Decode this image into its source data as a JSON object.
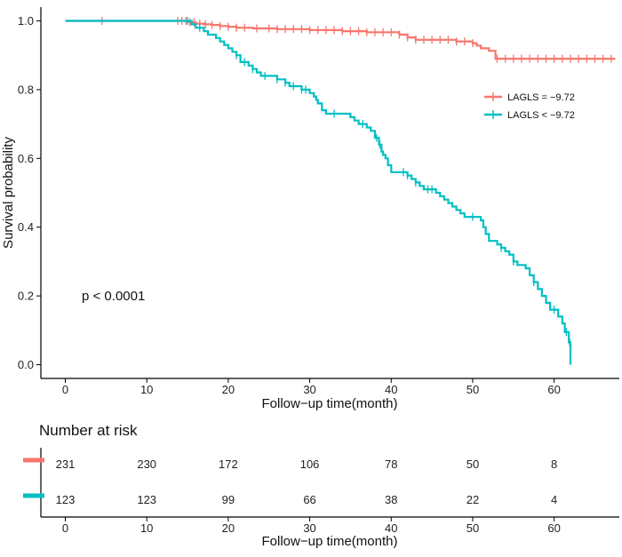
{
  "chart_data": {
    "type": "line",
    "subtype": "kaplan-meier",
    "xlabel": "Follow−up time(month)",
    "ylabel": "Survival probability",
    "xlim": [
      -3,
      68
    ],
    "ylim": [
      -0.04,
      1.04
    ],
    "x_ticks": [
      0,
      10,
      20,
      30,
      40,
      50,
      60
    ],
    "x_tick_labels": [
      "0",
      "10",
      "20",
      "30",
      "40",
      "50",
      "60"
    ],
    "y_ticks": [
      0.0,
      0.2,
      0.4,
      0.6,
      0.8,
      1.0
    ],
    "y_tick_labels": [
      "0.0",
      "0.2",
      "0.4",
      "0.6",
      "0.8",
      "1.0"
    ],
    "annotation": "p < 0.0001",
    "legend_position": "right",
    "series": [
      {
        "name": "LAGLS = −9.72",
        "color": "#F8766D",
        "steps": [
          [
            0,
            1.0
          ],
          [
            13.5,
            1.0
          ],
          [
            15,
            0.996
          ],
          [
            16,
            0.992
          ],
          [
            17,
            0.99
          ],
          [
            18,
            0.988
          ],
          [
            19,
            0.985
          ],
          [
            20,
            0.983
          ],
          [
            21,
            0.98
          ],
          [
            23,
            0.978
          ],
          [
            26,
            0.976
          ],
          [
            30,
            0.973
          ],
          [
            34,
            0.97
          ],
          [
            37,
            0.967
          ],
          [
            41,
            0.96
          ],
          [
            42,
            0.952
          ],
          [
            43,
            0.945
          ],
          [
            48,
            0.94
          ],
          [
            50,
            0.935
          ],
          [
            50.5,
            0.928
          ],
          [
            51,
            0.92
          ],
          [
            52,
            0.913
          ],
          [
            52.8,
            0.89
          ],
          [
            67.5,
            0.89
          ]
        ],
        "censor_x": [
          4.5,
          13.8,
          14.3,
          14.8,
          15.3,
          15.8,
          16.5,
          17.2,
          18,
          19,
          20,
          21,
          22,
          23.5,
          25,
          26,
          27,
          28,
          29,
          30,
          31,
          32,
          33,
          34,
          35,
          36,
          37,
          38,
          39,
          40,
          41,
          42,
          43,
          44,
          45,
          46,
          47,
          48,
          49,
          50,
          53,
          54,
          55,
          56,
          57,
          58,
          59,
          60,
          61,
          62,
          63,
          64,
          65,
          66,
          67
        ]
      },
      {
        "name": "LAGLS < −9.72",
        "color": "#00BFC4",
        "steps": [
          [
            0,
            1.0
          ],
          [
            15,
            1.0
          ],
          [
            15.5,
            0.99
          ],
          [
            16,
            0.98
          ],
          [
            17,
            0.97
          ],
          [
            17.5,
            0.96
          ],
          [
            18.5,
            0.95
          ],
          [
            19,
            0.94
          ],
          [
            19.5,
            0.93
          ],
          [
            20,
            0.92
          ],
          [
            20.5,
            0.91
          ],
          [
            21,
            0.9
          ],
          [
            21.5,
            0.88
          ],
          [
            22.5,
            0.87
          ],
          [
            23,
            0.86
          ],
          [
            23.5,
            0.85
          ],
          [
            24,
            0.84
          ],
          [
            26,
            0.83
          ],
          [
            27,
            0.82
          ],
          [
            27.5,
            0.81
          ],
          [
            29,
            0.8
          ],
          [
            30,
            0.79
          ],
          [
            30.5,
            0.78
          ],
          [
            30.8,
            0.77
          ],
          [
            31,
            0.76
          ],
          [
            31.5,
            0.74
          ],
          [
            32,
            0.73
          ],
          [
            35,
            0.72
          ],
          [
            35.5,
            0.71
          ],
          [
            36,
            0.7
          ],
          [
            37,
            0.69
          ],
          [
            37.5,
            0.68
          ],
          [
            38,
            0.66
          ],
          [
            38.5,
            0.64
          ],
          [
            38.8,
            0.62
          ],
          [
            39,
            0.61
          ],
          [
            39.3,
            0.6
          ],
          [
            39.6,
            0.58
          ],
          [
            40,
            0.56
          ],
          [
            42,
            0.55
          ],
          [
            42.5,
            0.54
          ],
          [
            43,
            0.53
          ],
          [
            43.5,
            0.52
          ],
          [
            44,
            0.51
          ],
          [
            45.5,
            0.5
          ],
          [
            46,
            0.49
          ],
          [
            46.5,
            0.48
          ],
          [
            47,
            0.47
          ],
          [
            47.5,
            0.46
          ],
          [
            48,
            0.45
          ],
          [
            48.5,
            0.44
          ],
          [
            49,
            0.43
          ],
          [
            51,
            0.42
          ],
          [
            51.3,
            0.4
          ],
          [
            51.6,
            0.38
          ],
          [
            52,
            0.36
          ],
          [
            53,
            0.35
          ],
          [
            53.5,
            0.34
          ],
          [
            54,
            0.33
          ],
          [
            54.5,
            0.32
          ],
          [
            55,
            0.3
          ],
          [
            55.5,
            0.29
          ],
          [
            56.5,
            0.28
          ],
          [
            57,
            0.26
          ],
          [
            57.5,
            0.24
          ],
          [
            58,
            0.22
          ],
          [
            58.5,
            0.2
          ],
          [
            59,
            0.18
          ],
          [
            59.5,
            0.16
          ],
          [
            60.5,
            0.14
          ],
          [
            61,
            0.12
          ],
          [
            61.3,
            0.095
          ],
          [
            61.8,
            0.065
          ],
          [
            62,
            0.0
          ]
        ],
        "censor_x": [
          15,
          16.5,
          21,
          22,
          23,
          24.5,
          26,
          27,
          28,
          29,
          29.5,
          33,
          36.5,
          38.2,
          38.6,
          41.5,
          42,
          43,
          44.5,
          45,
          50,
          53.5,
          55,
          57.5,
          60,
          61.5,
          61.9
        ]
      }
    ],
    "risk_table": {
      "title": "Number at risk",
      "xlabel": "Follow−up time(month)",
      "times": [
        0,
        10,
        20,
        30,
        40,
        50,
        60
      ],
      "rows": [
        {
          "color": "#F8766D",
          "values": [
            "231",
            "230",
            "172",
            "106",
            "78",
            "50",
            "8"
          ]
        },
        {
          "color": "#00BFC4",
          "values": [
            "123",
            "123",
            "99",
            "66",
            "38",
            "22",
            "4"
          ]
        }
      ]
    }
  }
}
